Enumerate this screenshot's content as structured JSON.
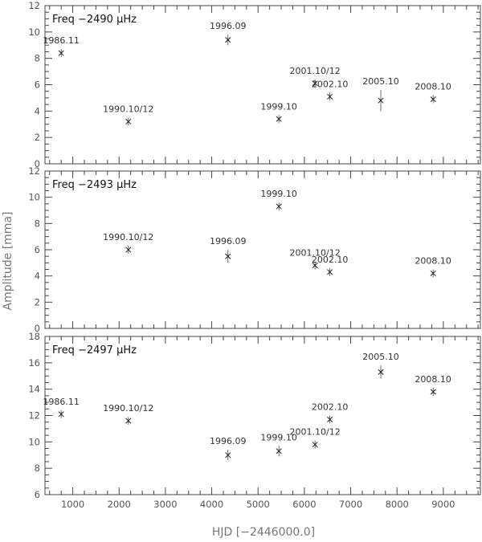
{
  "chart_data": [
    {
      "type": "scatter",
      "title": "Freq −2490 μHz",
      "xlim": [
        400,
        9800
      ],
      "ylim": [
        0,
        12
      ],
      "yticks": [
        0,
        2,
        4,
        6,
        8,
        10,
        12
      ],
      "points": [
        {
          "x": 750,
          "y": 8.4,
          "yerr": 0.3,
          "label": "1986.11",
          "label_pos": "above"
        },
        {
          "x": 2200,
          "y": 3.2,
          "yerr": 0.3,
          "label": "1990.10/12",
          "label_pos": "above"
        },
        {
          "x": 4350,
          "y": 9.4,
          "yerr": 0.4,
          "label": "1996.09",
          "label_pos": "above"
        },
        {
          "x": 5450,
          "y": 3.4,
          "yerr": 0.3,
          "label": "1999.10",
          "label_pos": "above"
        },
        {
          "x": 6230,
          "y": 6.1,
          "yerr": 0.3,
          "label": "2001.10/12",
          "label_pos": "above"
        },
        {
          "x": 6550,
          "y": 5.1,
          "yerr": 0.3,
          "label": "2002.10",
          "label_pos": "above"
        },
        {
          "x": 7650,
          "y": 4.8,
          "yerr": 0.8,
          "label": "2005.10",
          "label_pos": "above"
        },
        {
          "x": 8780,
          "y": 4.9,
          "yerr": 0.3,
          "label": "2008.10",
          "label_pos": "above"
        }
      ]
    },
    {
      "type": "scatter",
      "title": "Freq −2493 μHz",
      "xlim": [
        400,
        9800
      ],
      "ylim": [
        0,
        12
      ],
      "yticks": [
        0,
        2,
        4,
        6,
        8,
        10,
        12
      ],
      "points": [
        {
          "x": 2200,
          "y": 6.0,
          "yerr": 0.3,
          "label": "1990.10/12",
          "label_pos": "above"
        },
        {
          "x": 4350,
          "y": 5.5,
          "yerr": 0.5,
          "label": "1996.09",
          "label_pos": "above"
        },
        {
          "x": 5450,
          "y": 9.3,
          "yerr": 0.3,
          "label": "1999.10",
          "label_pos": "above"
        },
        {
          "x": 6230,
          "y": 4.8,
          "yerr": 0.3,
          "label": "2001.10/12",
          "label_pos": "above"
        },
        {
          "x": 6550,
          "y": 4.3,
          "yerr": 0.3,
          "label": "2002.10",
          "label_pos": "above"
        },
        {
          "x": 8780,
          "y": 4.2,
          "yerr": 0.3,
          "label": "2008.10",
          "label_pos": "above"
        }
      ]
    },
    {
      "type": "scatter",
      "title": "Freq −2497 μHz",
      "xlim": [
        400,
        9800
      ],
      "ylim": [
        6,
        18
      ],
      "yticks": [
        6,
        8,
        10,
        12,
        14,
        16,
        18
      ],
      "points": [
        {
          "x": 750,
          "y": 12.1,
          "yerr": 0.3,
          "label": "1986.11",
          "label_pos": "above"
        },
        {
          "x": 2200,
          "y": 11.6,
          "yerr": 0.3,
          "label": "1990.10/12",
          "label_pos": "above"
        },
        {
          "x": 4350,
          "y": 9.0,
          "yerr": 0.4,
          "label": "1996.09",
          "label_pos": "above"
        },
        {
          "x": 5450,
          "y": 9.3,
          "yerr": 0.4,
          "label": "1999.10",
          "label_pos": "above"
        },
        {
          "x": 6230,
          "y": 9.8,
          "yerr": 0.3,
          "label": "2001.10/12",
          "label_pos": "above"
        },
        {
          "x": 6550,
          "y": 11.7,
          "yerr": 0.3,
          "label": "2002.10",
          "label_pos": "above"
        },
        {
          "x": 7650,
          "y": 15.3,
          "yerr": 0.5,
          "label": "2005.10",
          "label_pos": "above"
        },
        {
          "x": 8780,
          "y": 13.8,
          "yerr": 0.3,
          "label": "2008.10",
          "label_pos": "above"
        }
      ]
    }
  ],
  "xticks": [
    1000,
    2000,
    3000,
    4000,
    5000,
    6000,
    7000,
    8000,
    9000
  ],
  "xlabel": "HJD [−2446000.0]",
  "ylabel": "Amplitude [mma]"
}
